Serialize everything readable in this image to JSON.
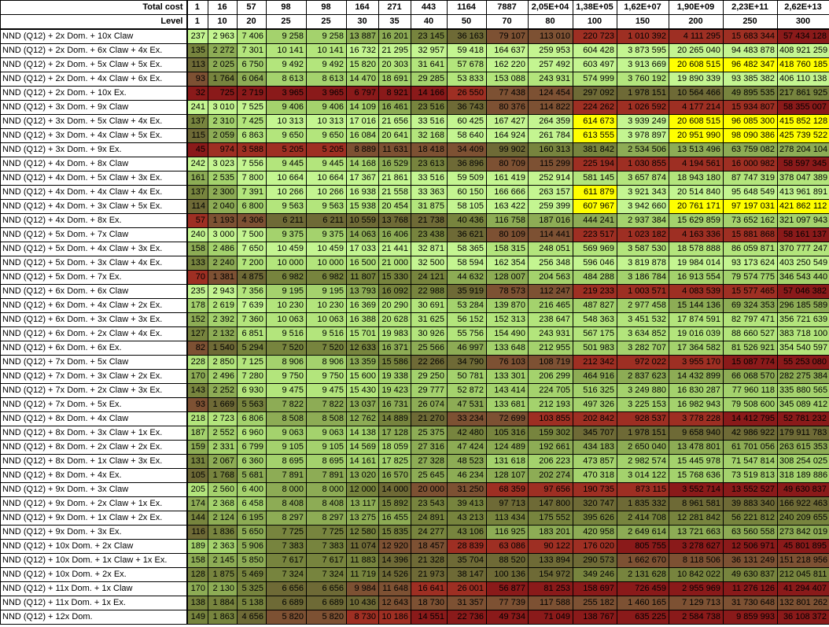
{
  "header": {
    "total_cost_label": "Total cost",
    "level_label": "Level",
    "total_cost": [
      "1",
      "16",
      "57",
      "98",
      "98",
      "164",
      "271",
      "443",
      "1164",
      "7887",
      "2,05E+04",
      "1,38E+05",
      "1,62E+07",
      "1,90E+09",
      "2,23E+11",
      "2,62E+13"
    ],
    "levels": [
      "1",
      "10",
      "20",
      "25",
      "25",
      "30",
      "35",
      "40",
      "50",
      "70",
      "80",
      "100",
      "150",
      "200",
      "250",
      "300"
    ]
  },
  "colors": {
    "scale": [
      "#8a1a1a",
      "#9e2f23",
      "#7d5133",
      "#6e6a36",
      "#77843e",
      "#8dac55",
      "#a4d26d",
      "#b3e57c",
      "#c4f591"
    ],
    "highlight": "#ffff00",
    "worst": "#8b1d1d"
  },
  "rows": [
    {
      "name": "NND (Q12) + 2x Dom. + 10x Claw",
      "values": [
        "237",
        "2 963",
        "7 406",
        "9 258",
        "9 258",
        "13 887",
        "16 201",
        "23 145",
        "36 163",
        "79 107",
        "113 010",
        "220 723",
        "1 010 392",
        "4 111 295",
        "15 683 344",
        "57 434 128"
      ]
    },
    {
      "name": "NND (Q12) + 2x Dom. + 6x Claw + 4x Ex.",
      "values": [
        "135",
        "2 272",
        "7 301",
        "10 141",
        "10 141",
        "16 732",
        "21 295",
        "32 957",
        "59 418",
        "164 637",
        "259 953",
        "604 428",
        "3 873 595",
        "20 265 040",
        "94 483 878",
        "408 921 259"
      ]
    },
    {
      "name": "NND (Q12) + 2x Dom. + 5x Claw + 5x Ex.",
      "values": [
        "113",
        "2 025",
        "6 750",
        "9 492",
        "9 492",
        "15 820",
        "20 303",
        "31 641",
        "57 678",
        "162 220",
        "257 492",
        "603 497",
        "3 913 669",
        "20 608 515",
        "96 482 347",
        "418 760 185"
      ]
    },
    {
      "name": "NND (Q12) + 2x Dom. + 4x Claw + 6x Ex.",
      "values": [
        "93",
        "1 764",
        "6 064",
        "8 613",
        "8 613",
        "14 470",
        "18 691",
        "29 285",
        "53 833",
        "153 088",
        "243 931",
        "574 999",
        "3 760 192",
        "19 890 339",
        "93 385 382",
        "406 110 138"
      ]
    },
    {
      "name": "NND (Q12) + 2x Dom. + 10x Ex.",
      "values": [
        "32",
        "725",
        "2 719",
        "3 965",
        "3 965",
        "6 797",
        "8 921",
        "14 166",
        "26 550",
        "77 438",
        "124 454",
        "297 092",
        "1 978 151",
        "10 564 466",
        "49 895 535",
        "217 861 925"
      ]
    },
    {
      "name": "NND (Q12) + 3x Dom. + 9x Claw",
      "values": [
        "241",
        "3 010",
        "7 525",
        "9 406",
        "9 406",
        "14 109",
        "16 461",
        "23 516",
        "36 743",
        "80 376",
        "114 822",
        "224 262",
        "1 026 592",
        "4 177 214",
        "15 934 807",
        "58 355 007"
      ]
    },
    {
      "name": "NND (Q12) + 3x Dom. + 5x Claw + 4x Ex.",
      "values": [
        "137",
        "2 310",
        "7 425",
        "10 313",
        "10 313",
        "17 016",
        "21 656",
        "33 516",
        "60 425",
        "167 427",
        "264 359",
        "614 673",
        "3 939 249",
        "20 608 515",
        "96 085 300",
        "415 852 128"
      ]
    },
    {
      "name": "NND (Q12) + 3x Dom. + 4x Claw + 5x Ex.",
      "values": [
        "115",
        "2 059",
        "6 863",
        "9 650",
        "9 650",
        "16 084",
        "20 641",
        "32 168",
        "58 640",
        "164 924",
        "261 784",
        "613 555",
        "3 978 897",
        "20 951 990",
        "98 090 386",
        "425 739 522"
      ]
    },
    {
      "name": "NND (Q12) + 3x Dom. + 9x Ex.",
      "values": [
        "45",
        "974",
        "3 588",
        "5 205",
        "5 205",
        "8 889",
        "11 631",
        "18 418",
        "34 409",
        "99 902",
        "160 313",
        "381 842",
        "2 534 506",
        "13 513 496",
        "63 759 082",
        "278 204 104"
      ]
    },
    {
      "name": "NND (Q12) + 4x Dom. + 8x Claw",
      "values": [
        "242",
        "3 023",
        "7 556",
        "9 445",
        "9 445",
        "14 168",
        "16 529",
        "23 613",
        "36 896",
        "80 709",
        "115 299",
        "225 194",
        "1 030 855",
        "4 194 561",
        "16 000 982",
        "58 597 345"
      ]
    },
    {
      "name": "NND (Q12) + 4x Dom. + 5x Claw + 3x Ex.",
      "values": [
        "161",
        "2 535",
        "7 800",
        "10 664",
        "10 664",
        "17 367",
        "21 861",
        "33 516",
        "59 509",
        "161 419",
        "252 914",
        "581 145",
        "3 657 874",
        "18 943 180",
        "87 747 319",
        "378 047 389"
      ]
    },
    {
      "name": "NND (Q12) + 4x Dom. + 4x Claw + 4x Ex.",
      "values": [
        "137",
        "2 300",
        "7 391",
        "10 266",
        "10 266",
        "16 938",
        "21 558",
        "33 363",
        "60 150",
        "166 666",
        "263 157",
        "611 879",
        "3 921 343",
        "20 514 840",
        "95 648 549",
        "413 961 891"
      ]
    },
    {
      "name": "NND (Q12) + 4x Dom. + 3x Claw + 5x Ex.",
      "values": [
        "114",
        "2 040",
        "6 800",
        "9 563",
        "9 563",
        "15 938",
        "20 454",
        "31 875",
        "58 105",
        "163 422",
        "259 399",
        "607 967",
        "3 942 660",
        "20 761 171",
        "97 197 031",
        "421 862 112"
      ]
    },
    {
      "name": "NND (Q12) + 4x Dom. + 8x Ex.",
      "values": [
        "57",
        "1 193",
        "4 306",
        "6 211",
        "6 211",
        "10 559",
        "13 768",
        "21 738",
        "40 436",
        "116 758",
        "187 016",
        "444 241",
        "2 937 384",
        "15 629 859",
        "73 652 162",
        "321 097 943"
      ]
    },
    {
      "name": "NND (Q12) + 5x Dom. + 7x Claw",
      "values": [
        "240",
        "3 000",
        "7 500",
        "9 375",
        "9 375",
        "14 063",
        "16 406",
        "23 438",
        "36 621",
        "80 109",
        "114 441",
        "223 517",
        "1 023 182",
        "4 163 336",
        "15 881 868",
        "58 161 137"
      ]
    },
    {
      "name": "NND (Q12) + 5x Dom. + 4x Claw + 3x Ex.",
      "values": [
        "158",
        "2 486",
        "7 650",
        "10 459",
        "10 459",
        "17 033",
        "21 441",
        "32 871",
        "58 365",
        "158 315",
        "248 051",
        "569 969",
        "3 587 530",
        "18 578 888",
        "86 059 871",
        "370 777 247"
      ]
    },
    {
      "name": "NND (Q12) + 5x Dom. + 3x Claw + 4x Ex.",
      "values": [
        "133",
        "2 240",
        "7 200",
        "10 000",
        "10 000",
        "16 500",
        "21 000",
        "32 500",
        "58 594",
        "162 354",
        "256 348",
        "596 046",
        "3 819 878",
        "19 984 014",
        "93 173 624",
        "403 250 549"
      ]
    },
    {
      "name": "NND (Q12) + 5x Dom. + 7x Ex.",
      "values": [
        "70",
        "1 381",
        "4 875",
        "6 982",
        "6 982",
        "11 807",
        "15 330",
        "24 121",
        "44 632",
        "128 007",
        "204 563",
        "484 288",
        "3 186 784",
        "16 913 554",
        "79 574 775",
        "346 543 440"
      ]
    },
    {
      "name": "NND (Q12) + 6x Dom. + 6x Claw",
      "values": [
        "235",
        "2 943",
        "7 356",
        "9 195",
        "9 195",
        "13 793",
        "16 092",
        "22 988",
        "35 919",
        "78 573",
        "112 247",
        "219 233",
        "1 003 571",
        "4 083 539",
        "15 577 465",
        "57 046 382"
      ]
    },
    {
      "name": "NND (Q12) + 6x Dom. + 4x Claw + 2x Ex.",
      "values": [
        "178",
        "2 619",
        "7 639",
        "10 230",
        "10 230",
        "16 369",
        "20 290",
        "30 691",
        "53 284",
        "139 870",
        "216 465",
        "487 827",
        "2 977 458",
        "15 144 136",
        "69 324 353",
        "296 185 589"
      ]
    },
    {
      "name": "NND (Q12) + 6x Dom. + 3x Claw + 3x Ex.",
      "values": [
        "152",
        "2 392",
        "7 360",
        "10 063",
        "10 063",
        "16 388",
        "20 628",
        "31 625",
        "56 152",
        "152 313",
        "238 647",
        "548 363",
        "3 451 532",
        "17 874 591",
        "82 797 471",
        "356 721 639"
      ]
    },
    {
      "name": "NND (Q12) + 6x Dom. + 2x Claw + 4x Ex.",
      "values": [
        "127",
        "2 132",
        "6 851",
        "9 516",
        "9 516",
        "15 701",
        "19 983",
        "30 926",
        "55 756",
        "154 490",
        "243 931",
        "567 175",
        "3 634 852",
        "19 016 039",
        "88 660 527",
        "383 718 100"
      ]
    },
    {
      "name": "NND (Q12) + 6x Dom. + 6x Ex.",
      "values": [
        "82",
        "1 540",
        "5 294",
        "7 520",
        "7 520",
        "12 633",
        "16 371",
        "25 566",
        "46 997",
        "133 648",
        "212 955",
        "501 983",
        "3 282 707",
        "17 364 582",
        "81 526 921",
        "354 540 597"
      ]
    },
    {
      "name": "NND (Q12) + 7x Dom. + 5x Claw",
      "values": [
        "228",
        "2 850",
        "7 125",
        "8 906",
        "8 906",
        "13 359",
        "15 586",
        "22 266",
        "34 790",
        "76 103",
        "108 719",
        "212 342",
        "972 022",
        "3 955 170",
        "15 087 774",
        "55 253 080"
      ]
    },
    {
      "name": "NND (Q12) + 7x Dom. + 3x Claw + 2x Ex.",
      "values": [
        "170",
        "2 496",
        "7 280",
        "9 750",
        "9 750",
        "15 600",
        "19 338",
        "29 250",
        "50 781",
        "133 301",
        "206 299",
        "464 916",
        "2 837 623",
        "14 432 899",
        "66 068 570",
        "282 275 384"
      ]
    },
    {
      "name": "NND (Q12) + 7x Dom. + 2x Claw + 3x Ex.",
      "values": [
        "143",
        "2 252",
        "6 930",
        "9 475",
        "9 475",
        "15 430",
        "19 423",
        "29 777",
        "52 872",
        "143 414",
        "224 705",
        "516 325",
        "3 249 880",
        "16 830 287",
        "77 960 118",
        "335 880 565"
      ]
    },
    {
      "name": "NND (Q12) + 7x Dom. + 5x Ex.",
      "values": [
        "93",
        "1 669",
        "5 563",
        "7 822",
        "7 822",
        "13 037",
        "16 731",
        "26 074",
        "47 531",
        "133 681",
        "212 193",
        "497 326",
        "3 225 153",
        "16 982 943",
        "79 508 600",
        "345 089 412"
      ]
    },
    {
      "name": "NND (Q12) + 8x Dom. + 4x Claw",
      "values": [
        "218",
        "2 723",
        "6 806",
        "8 508",
        "8 508",
        "12 762",
        "14 889",
        "21 270",
        "33 234",
        "72 699",
        "103 855",
        "202 842",
        "928 537",
        "3 778 228",
        "14 412 795",
        "52 781 232"
      ]
    },
    {
      "name": "NND (Q12) + 8x Dom. + 3x Claw + 1x Ex.",
      "values": [
        "187",
        "2 552",
        "6 960",
        "9 063",
        "9 063",
        "14 138",
        "17 128",
        "25 375",
        "42 480",
        "105 316",
        "159 302",
        "345 707",
        "1 978 151",
        "9 658 940",
        "42 986 922",
        "179 911 783"
      ]
    },
    {
      "name": "NND (Q12) + 8x Dom. + 2x Claw + 2x Ex.",
      "values": [
        "159",
        "2 331",
        "6 799",
        "9 105",
        "9 105",
        "14 569",
        "18 059",
        "27 316",
        "47 424",
        "124 489",
        "192 661",
        "434 183",
        "2 650 040",
        "13 478 801",
        "61 701 056",
        "263 615 353"
      ]
    },
    {
      "name": "NND (Q12) + 8x Dom. + 1x Claw + 3x Ex.",
      "values": [
        "131",
        "2 067",
        "6 360",
        "8 695",
        "8 695",
        "14 161",
        "17 825",
        "27 328",
        "48 523",
        "131 618",
        "206 223",
        "473 857",
        "2 982 574",
        "15 445 978",
        "71 547 814",
        "308 254 025"
      ]
    },
    {
      "name": "NND (Q12) + 8x Dom. + 4x Ex.",
      "values": [
        "105",
        "1 768",
        "5 681",
        "7 891",
        "7 891",
        "13 020",
        "16 570",
        "25 645",
        "46 234",
        "128 107",
        "202 274",
        "470 318",
        "3 014 122",
        "15 768 636",
        "73 519 813",
        "318 189 886"
      ]
    },
    {
      "name": "NND (Q12) + 9x Dom. + 3x Claw",
      "values": [
        "205",
        "2 560",
        "6 400",
        "8 000",
        "8 000",
        "12 000",
        "14 000",
        "20 000",
        "31 250",
        "68 359",
        "97 656",
        "190 735",
        "873 115",
        "3 552 714",
        "13 552 527",
        "49 630 837"
      ]
    },
    {
      "name": "NND (Q12) + 9x Dom. + 2x Claw + 1x Ex.",
      "values": [
        "174",
        "2 368",
        "6 458",
        "8 408",
        "8 408",
        "13 117",
        "15 892",
        "23 543",
        "39 413",
        "97 713",
        "147 800",
        "320 747",
        "1 835 332",
        "8 961 581",
        "39 883 340",
        "166 922 463"
      ]
    },
    {
      "name": "NND (Q12) + 9x Dom. + 1x Claw + 2x Ex.",
      "values": [
        "144",
        "2 124",
        "6 195",
        "8 297",
        "8 297",
        "13 275",
        "16 455",
        "24 891",
        "43 213",
        "113 434",
        "175 552",
        "395 626",
        "2 414 708",
        "12 281 842",
        "56 221 812",
        "240 209 655"
      ]
    },
    {
      "name": "NND (Q12) + 9x Dom. + 3x Ex.",
      "values": [
        "116",
        "1 836",
        "5 650",
        "7 725",
        "7 725",
        "12 580",
        "15 835",
        "24 277",
        "43 106",
        "116 925",
        "183 201",
        "420 958",
        "2 649 614",
        "13 721 663",
        "63 560 558",
        "273 842 019"
      ]
    },
    {
      "name": "NND (Q12) + 10x Dom. + 2x Claw",
      "values": [
        "189",
        "2 363",
        "5 906",
        "7 383",
        "7 383",
        "11 074",
        "12 920",
        "18 457",
        "28 839",
        "63 086",
        "90 122",
        "176 020",
        "805 755",
        "3 278 627",
        "12 506 971",
        "45 801 895"
      ]
    },
    {
      "name": "NND (Q12) + 10x Dom. + 1x Claw + 1x Ex.",
      "values": [
        "158",
        "2 145",
        "5 850",
        "7 617",
        "7 617",
        "11 883",
        "14 396",
        "21 328",
        "35 704",
        "88 520",
        "133 894",
        "290 573",
        "1 662 670",
        "8 118 506",
        "36 131 249",
        "151 218 956"
      ]
    },
    {
      "name": "NND (Q12) + 10x Dom. + 2x Ex.",
      "values": [
        "128",
        "1 875",
        "5 469",
        "7 324",
        "7 324",
        "11 719",
        "14 526",
        "21 973",
        "38 147",
        "100 136",
        "154 972",
        "349 246",
        "2 131 628",
        "10 842 022",
        "49 630 837",
        "212 045 811"
      ]
    },
    {
      "name": "NND (Q12) + 11x Dom. + 1x Claw",
      "values": [
        "170",
        "2 130",
        "5 325",
        "6 656",
        "6 656",
        "9 984",
        "11 648",
        "16 641",
        "26 001",
        "56 877",
        "81 253",
        "158 697",
        "726 459",
        "2 955 969",
        "11 276 126",
        "41 294 407"
      ]
    },
    {
      "name": "NND (Q12) + 11x Dom. + 1x Ex.",
      "values": [
        "138",
        "1 884",
        "5 138",
        "6 689",
        "6 689",
        "10 436",
        "12 643",
        "18 730",
        "31 357",
        "77 739",
        "117 588",
        "255 182",
        "1 460 165",
        "7 129 713",
        "31 730 648",
        "132 801 262"
      ]
    },
    {
      "name": "NND (Q12) + 12x Dom.",
      "values": [
        "149",
        "1 863",
        "4 656",
        "5 820",
        "5 820",
        "8 730",
        "10 186",
        "14 551",
        "22 736",
        "49 734",
        "71 049",
        "138 767",
        "635 225",
        "2 584 738",
        "9 859 993",
        "36 108 372"
      ]
    }
  ]
}
